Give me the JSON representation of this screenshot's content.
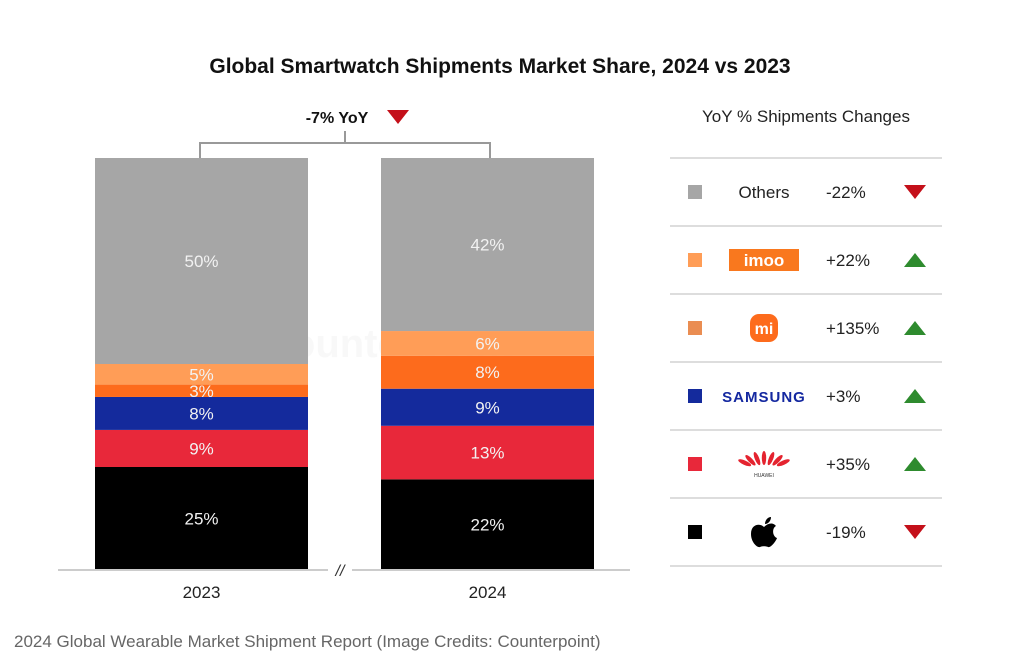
{
  "chart_data": {
    "type": "bar",
    "stacked": true,
    "title": "Global Smartwatch Shipments Market Share, 2024 vs 2023",
    "xlabel": "",
    "ylabel": "",
    "ylim": [
      0,
      100
    ],
    "categories": [
      "2023",
      "2024"
    ],
    "axis_break_label": "//",
    "yoy_total": {
      "label": "-7% YoY",
      "direction": "down"
    },
    "series": [
      {
        "name": "Apple",
        "color": "#000000",
        "values": [
          25,
          22
        ]
      },
      {
        "name": "Huawei",
        "color": "#e8283a",
        "values": [
          9,
          13
        ]
      },
      {
        "name": "Samsung",
        "color": "#142a9c",
        "values": [
          8,
          9
        ]
      },
      {
        "name": "Xiaomi",
        "color": "#fd6b1c",
        "values": [
          3,
          8
        ]
      },
      {
        "name": "imoo",
        "color": "#ff9d57",
        "values": [
          5,
          6
        ]
      },
      {
        "name": "Others",
        "color": "#a6a6a6",
        "values": [
          50,
          42
        ]
      }
    ],
    "legend": {
      "title": "YoY % Shipments Changes",
      "placement": "right",
      "items": [
        {
          "name": "Others",
          "logo": "text",
          "color": "#a6a6a6",
          "change": "-22%",
          "direction": "down"
        },
        {
          "name": "imoo",
          "logo": "imoo-logo",
          "color": "#ff9d57",
          "change": "+22%",
          "direction": "up"
        },
        {
          "name": "mi",
          "logo": "xiaomi-logo",
          "color": "#ea8d52",
          "change": "+135%",
          "direction": "up"
        },
        {
          "name": "SAMSUNG",
          "logo": "samsung-logo",
          "color": "#142a9c",
          "change": "+3%",
          "direction": "up"
        },
        {
          "name": "HUAWEI",
          "logo": "huawei-logo",
          "color": "#e8283a",
          "change": "+35%",
          "direction": "up"
        },
        {
          "name": "Apple",
          "logo": "apple-logo",
          "color": "#000000",
          "change": "-19%",
          "direction": "down"
        }
      ]
    },
    "colors": {
      "up": "#2e8b2e",
      "down": "#c4101a"
    },
    "watermark": "Counterpoint"
  },
  "caption": "2024 Global Wearable Market Shipment Report (Image Credits: Counterpoint)"
}
